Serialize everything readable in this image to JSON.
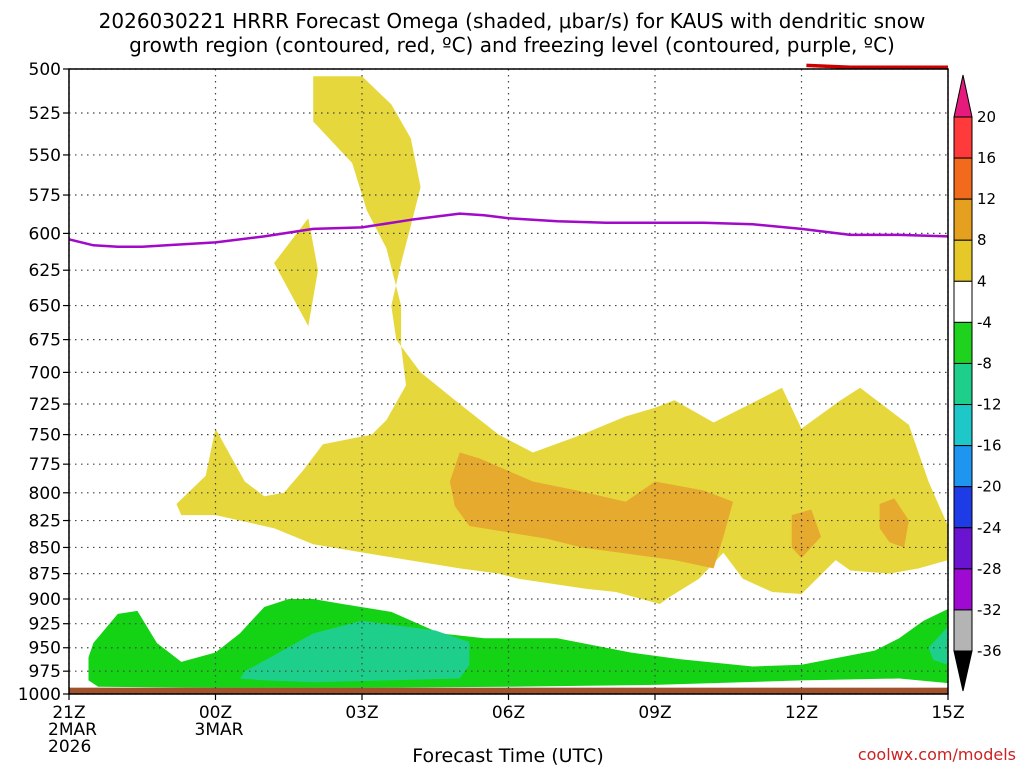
{
  "chart_data": {
    "type": "heatmap",
    "title_lines": [
      "2026030221 HRRR Forecast Omega (shaded, μbar/s) for KAUS with dendritic snow",
      "growth region (contoured, red, ºC) and freezing level (contoured, purple, ºC)"
    ],
    "xlabel": "Forecast Time (UTC)",
    "x_ticks": [
      {
        "h": 0,
        "lines": [
          "21Z",
          "2MAR",
          "2026"
        ]
      },
      {
        "h": 3,
        "lines": [
          "00Z",
          "3MAR"
        ]
      },
      {
        "h": 6,
        "lines": [
          "03Z"
        ]
      },
      {
        "h": 9,
        "lines": [
          "06Z"
        ]
      },
      {
        "h": 12,
        "lines": [
          "09Z"
        ]
      },
      {
        "h": 15,
        "lines": [
          "12Z"
        ]
      },
      {
        "h": 18,
        "lines": [
          "15Z"
        ]
      }
    ],
    "xlim": [
      0,
      18
    ],
    "y_ticks": [
      "500",
      "525",
      "550",
      "575",
      "600",
      "625",
      "650",
      "675",
      "700",
      "725",
      "750",
      "775",
      "800",
      "825",
      "850",
      "875",
      "900",
      "925",
      "950",
      "975",
      "1000"
    ],
    "ylim": [
      1000,
      500
    ],
    "yscale": "log-pressure",
    "grid": true,
    "colorbar": {
      "levels": [
        "20",
        "16",
        "12",
        "8",
        "4",
        "-4",
        "-8",
        "-12",
        "-16",
        "-20",
        "-24",
        "-28",
        "-32",
        "-36"
      ],
      "colors": [
        "#ff3a3a",
        "#f26b1d",
        "#e6a020",
        "#e6c828",
        "#ffffff",
        "#1ed21e",
        "#1ecf8c",
        "#1ec8c8",
        "#1e96f0",
        "#1e3ce6",
        "#6a14d2",
        "#9e0ad2",
        "#b4b4b4"
      ],
      "top_arrow_color": "#e6197d",
      "bottom_arrow_color": "#000000"
    },
    "shaded_regions": [
      {
        "level": "4 to 8",
        "color": "#e6d83c",
        "polygons": [
          [
            [
              5.0,
              504
            ],
            [
              6.0,
              504
            ],
            [
              6.6,
              520
            ],
            [
              7.0,
              540
            ],
            [
              7.2,
              570
            ],
            [
              7.0,
              595
            ],
            [
              6.8,
              620
            ],
            [
              6.6,
              650
            ],
            [
              6.7,
              675
            ],
            [
              7.2,
              700
            ],
            [
              8.0,
              725
            ],
            [
              8.8,
              750
            ],
            [
              9.5,
              765
            ],
            [
              10.5,
              750
            ],
            [
              11.4,
              735
            ],
            [
              12.0,
              728
            ],
            [
              12.4,
              722
            ],
            [
              13.2,
              740
            ],
            [
              14.0,
              724
            ],
            [
              14.6,
              712
            ],
            [
              15.0,
              745
            ],
            [
              15.8,
              722
            ],
            [
              16.2,
              712
            ],
            [
              17.2,
              742
            ],
            [
              17.6,
              790
            ],
            [
              18.0,
              830
            ],
            [
              18.0,
              862
            ],
            [
              17.4,
              870
            ],
            [
              16.8,
              875
            ],
            [
              16.0,
              872
            ],
            [
              15.7,
              862
            ],
            [
              15.0,
              895
            ],
            [
              14.4,
              893
            ],
            [
              13.8,
              880
            ],
            [
              13.4,
              855
            ],
            [
              12.9,
              880
            ],
            [
              12.3,
              898
            ],
            [
              12.1,
              905
            ],
            [
              11.2,
              893
            ],
            [
              10.6,
              890
            ],
            [
              9.2,
              880
            ],
            [
              8.8,
              875
            ],
            [
              8.0,
              870
            ],
            [
              6.3,
              857
            ],
            [
              5.0,
              847
            ],
            [
              4.2,
              832
            ],
            [
              3.0,
              820
            ],
            [
              2.3,
              820
            ],
            [
              2.2,
              810
            ],
            [
              2.8,
              785
            ],
            [
              3.0,
              745
            ],
            [
              3.6,
              790
            ],
            [
              4.0,
              803
            ],
            [
              4.4,
              800
            ],
            [
              4.8,
              780
            ],
            [
              5.2,
              758
            ],
            [
              6.2,
              750
            ],
            [
              6.5,
              738
            ],
            [
              6.9,
              710
            ],
            [
              6.8,
              680
            ],
            [
              6.8,
              650
            ],
            [
              6.5,
              610
            ],
            [
              6.1,
              585
            ],
            [
              5.8,
              555
            ],
            [
              5.0,
              530
            ]
          ],
          [
            [
              4.2,
              620
            ],
            [
              4.9,
              590
            ],
            [
              5.1,
              625
            ],
            [
              4.9,
              665
            ]
          ]
        ]
      },
      {
        "level": "8 to 12",
        "color": "#e6aa2e",
        "polygons": [
          [
            [
              8.0,
              765
            ],
            [
              8.4,
              770
            ],
            [
              9.5,
              790
            ],
            [
              10.4,
              798
            ],
            [
              11.4,
              808
            ],
            [
              12.0,
              790
            ],
            [
              13.0,
              798
            ],
            [
              13.6,
              808
            ],
            [
              13.4,
              840
            ],
            [
              13.2,
              870
            ],
            [
              12.4,
              862
            ],
            [
              10.5,
              850
            ],
            [
              9.8,
              842
            ],
            [
              8.2,
              830
            ],
            [
              7.9,
              812
            ],
            [
              7.8,
              790
            ]
          ],
          [
            [
              14.8,
              820
            ],
            [
              15.2,
              815
            ],
            [
              15.4,
              840
            ],
            [
              15.0,
              860
            ],
            [
              14.8,
              850
            ]
          ],
          [
            [
              16.6,
              810
            ],
            [
              16.9,
              805
            ],
            [
              17.2,
              825
            ],
            [
              17.1,
              850
            ],
            [
              16.8,
              845
            ],
            [
              16.6,
              832
            ]
          ]
        ]
      },
      {
        "level": "-4 to -8",
        "color": "#14d214",
        "polygons": [
          [
            [
              0.5,
              945
            ],
            [
              1.0,
              915
            ],
            [
              1.4,
              912
            ],
            [
              1.8,
              945
            ],
            [
              2.3,
              965
            ],
            [
              3.0,
              955
            ],
            [
              3.5,
              935
            ],
            [
              4.0,
              908
            ],
            [
              4.5,
              900
            ],
            [
              5.0,
              900
            ],
            [
              5.6,
              905
            ],
            [
              6.6,
              913
            ],
            [
              7.6,
              935
            ],
            [
              8.5,
              940
            ],
            [
              10.0,
              940
            ],
            [
              11.5,
              955
            ],
            [
              12.5,
              962
            ],
            [
              14.0,
              970
            ],
            [
              15.0,
              968
            ],
            [
              15.8,
              960
            ],
            [
              16.5,
              953
            ],
            [
              17.0,
              940
            ],
            [
              17.5,
              922
            ],
            [
              18.0,
              910
            ],
            [
              18.0,
              988
            ],
            [
              17.0,
              983
            ],
            [
              15.0,
              985
            ],
            [
              12.0,
              990
            ],
            [
              9.0,
              992
            ],
            [
              6.0,
              993
            ],
            [
              3.0,
              993
            ],
            [
              0.6,
              992
            ],
            [
              0.4,
              985
            ],
            [
              0.4,
              960
            ]
          ]
        ]
      },
      {
        "level": "-8 to -12",
        "color": "#1ecf8c",
        "polygons": [
          [
            [
              3.6,
              975
            ],
            [
              4.2,
              958
            ],
            [
              5.0,
              935
            ],
            [
              6.0,
              922
            ],
            [
              7.5,
              932
            ],
            [
              8.2,
              944
            ],
            [
              8.2,
              968
            ],
            [
              8.0,
              983
            ],
            [
              6.5,
              985
            ],
            [
              5.0,
              987
            ],
            [
              4.0,
              985
            ],
            [
              3.5,
              983
            ]
          ],
          [
            [
              17.6,
              950
            ],
            [
              18.0,
              928
            ],
            [
              18.0,
              968
            ],
            [
              17.7,
              963
            ]
          ]
        ]
      }
    ],
    "series": [
      {
        "contour": "freezing level",
        "color": "#a00ac8",
        "x": [
          0,
          0.5,
          1,
          1.5,
          2,
          3,
          4,
          5,
          6,
          7,
          8,
          8.5,
          9,
          10,
          11,
          12,
          13,
          14,
          15,
          16,
          17,
          18
        ],
        "y": [
          604,
          608,
          609,
          609,
          608,
          606,
          602,
          597,
          596,
          591,
          587,
          588,
          590,
          592,
          593,
          593,
          593,
          594,
          597,
          601,
          601,
          602
        ]
      },
      {
        "contour": "dendritic snow growth region",
        "color": "#cc0000",
        "x": [
          15.1,
          16,
          17,
          18
        ],
        "y": [
          498,
          499,
          499,
          499
        ]
      }
    ],
    "surface_band_color": "#a0522d",
    "credit": "coolwx.com/models"
  }
}
